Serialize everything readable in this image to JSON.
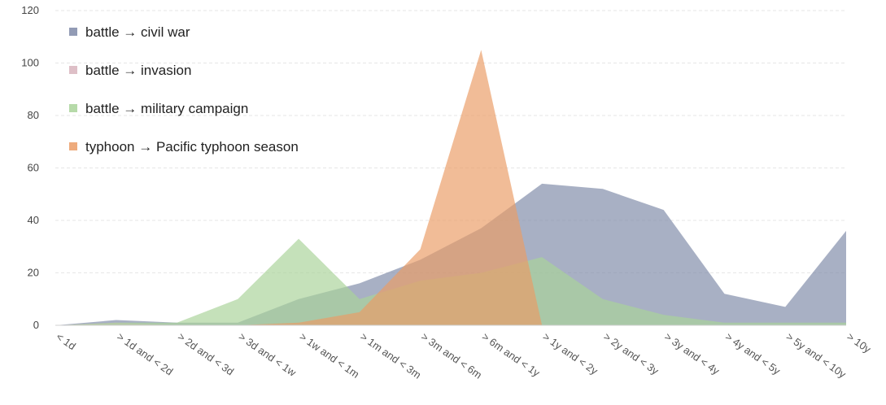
{
  "chart_data": {
    "type": "area",
    "categories": [
      "< 1d",
      "> 1d and < 2d",
      "> 2d and < 3d",
      "> 3d and < 1w",
      "> 1w and < 1m",
      "> 1m and < 3m",
      "> 3m and < 6m",
      "> 6m and < 1y",
      "> 1y and < 2y",
      "> 2y and < 3y",
      "> 3y and < 4y",
      "> 4y and < 5y",
      "> 5y and < 10y",
      "> 10y"
    ],
    "series": [
      {
        "name": "battle → civil war",
        "color": "#7f8aa8",
        "values": [
          0,
          2,
          1,
          1,
          10,
          16,
          25,
          37,
          54,
          52,
          44,
          12,
          7,
          36
        ]
      },
      {
        "name": "battle → invasion",
        "color": "#d8b4bd",
        "values": [
          0,
          1,
          0,
          0,
          0,
          0,
          0,
          0,
          0,
          0,
          0,
          0,
          0,
          0
        ]
      },
      {
        "name": "battle → military campaign",
        "color": "#a9d39a",
        "values": [
          0,
          1,
          1,
          10,
          33,
          10,
          17,
          20,
          26,
          10,
          4,
          1,
          1,
          1
        ]
      },
      {
        "name": "typhoon → Pacific typhoon season",
        "color": "#eb9c66",
        "values": [
          0,
          0,
          0,
          0,
          1,
          5,
          29,
          105,
          0,
          0,
          0,
          0,
          0,
          0
        ]
      }
    ],
    "yticks": [
      "0",
      "20",
      "40",
      "60",
      "80",
      "100",
      "120"
    ],
    "ylim": [
      0,
      120
    ],
    "grid": true,
    "legend_position": "top-left"
  }
}
